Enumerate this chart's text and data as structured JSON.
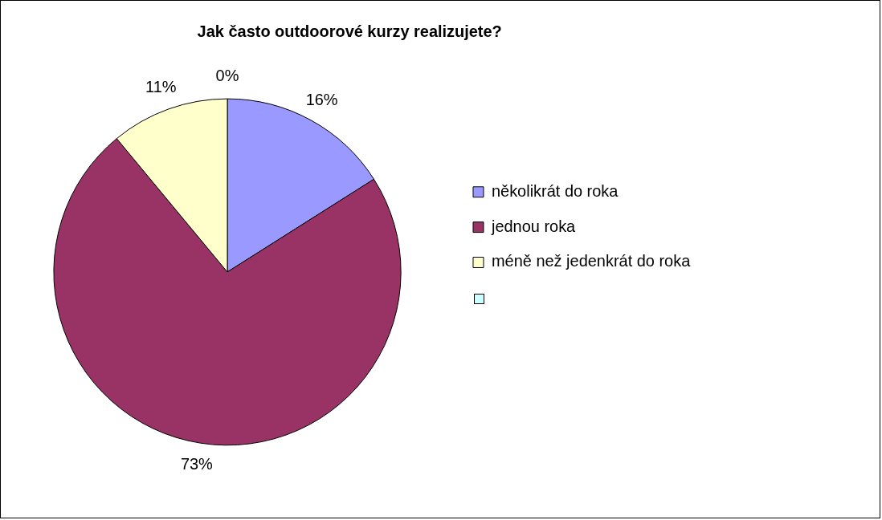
{
  "chart_data": {
    "type": "pie",
    "title": "Jak často outdoorové kurzy realizujete?",
    "categories": [
      "několikrát do roka",
      "jednou roka",
      "méně než jedenkrát do roka",
      null
    ],
    "values": [
      16,
      73,
      11,
      0
    ],
    "value_labels": [
      "16%",
      "73%",
      "11%",
      "0%"
    ],
    "colors": [
      "#9999ff",
      "#993366",
      "#ffffcc",
      "#ccffff"
    ],
    "legend": "right"
  }
}
